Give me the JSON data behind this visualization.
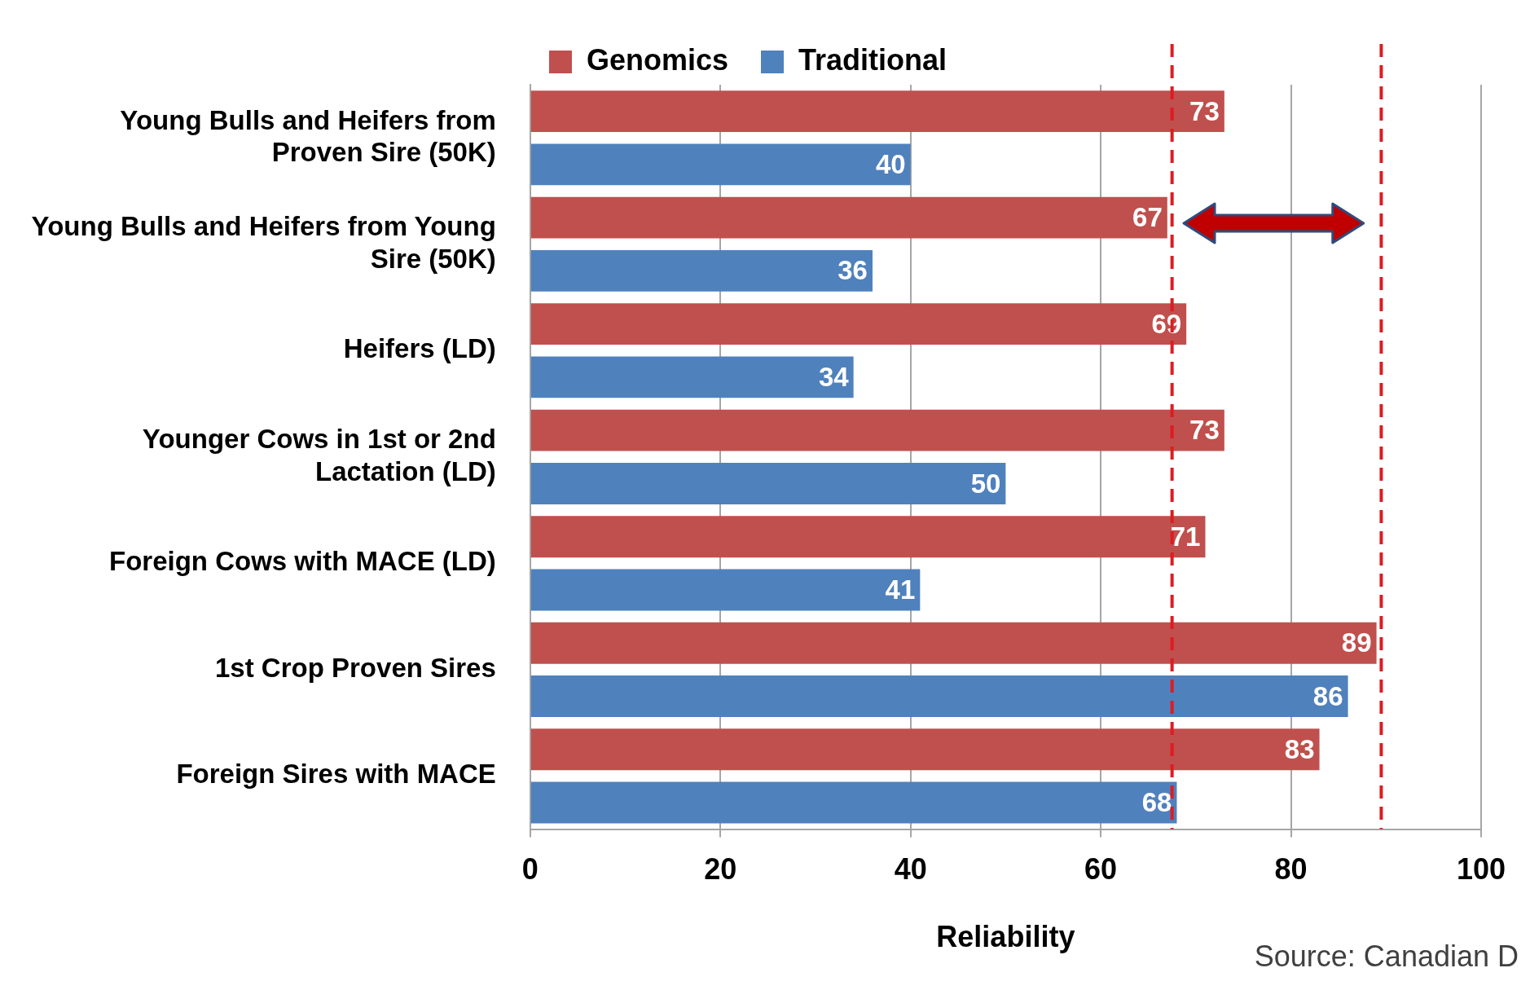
{
  "chart_data": {
    "type": "bar",
    "orientation": "horizontal",
    "xlabel": "Reliability",
    "categories": [
      "Young Bulls and Heifers from Proven Sire (50K)",
      "Young Bulls and Heifers from Young Sire (50K)",
      "Heifers (LD)",
      "Younger Cows in 1st or 2nd Lactation (LD)",
      "Foreign Cows with MACE (LD)",
      "1st Crop Proven Sires",
      "Foreign Sires with MACE"
    ],
    "series": [
      {
        "name": "Genomics",
        "color": "#c0504d",
        "values": [
          73,
          67,
          69,
          73,
          71,
          89,
          83
        ]
      },
      {
        "name": "Traditional",
        "color": "#4f81bd",
        "values": [
          40,
          36,
          34,
          50,
          41,
          86,
          68
        ]
      }
    ],
    "xlim": [
      0,
      100
    ],
    "xticks": [
      0,
      20,
      40,
      60,
      80,
      100
    ],
    "grid": "x",
    "legend": "top",
    "data_labels": true,
    "ref_lines": [
      {
        "axis": "x",
        "value": 67.5,
        "color": "#dd1c22",
        "line_style": "dashed"
      },
      {
        "axis": "x",
        "value": 89.5,
        "color": "#dd1c22",
        "line_style": "dashed"
      }
    ],
    "annotations": [
      "Source: Canadian D"
    ]
  }
}
